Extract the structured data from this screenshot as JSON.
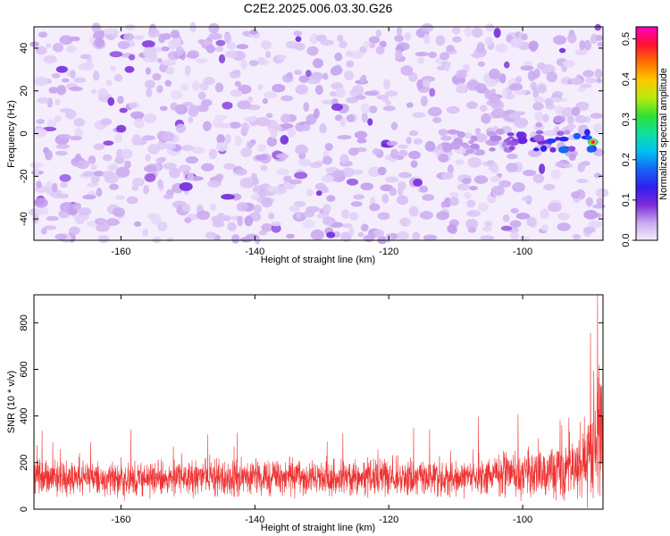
{
  "chart_data": [
    {
      "type": "heatmap",
      "title": "C2E2.2025.006.03.30.G26",
      "xlabel": "Height of straight line (km)",
      "ylabel": "Frequency (Hz)",
      "xlim": [
        -173,
        -88
      ],
      "ylim": [
        -50,
        50
      ],
      "x_ticks": [
        "-160",
        "-140",
        "-120",
        "-100"
      ],
      "y_ticks": [
        "-40",
        "-20",
        "0",
        "20",
        "40"
      ],
      "colorbar": {
        "label": "Normalized spectral amplitude",
        "range": [
          0.0,
          0.53
        ],
        "ticks": [
          "0.0",
          "0.1",
          "0.2",
          "0.3",
          "0.4",
          "0.5"
        ],
        "colors": [
          "#f4eefc",
          "#c8a6ef",
          "#7b2bd9",
          "#2f1ff0",
          "#1565f5",
          "#00c2f0",
          "#10e0a0",
          "#30e030",
          "#b8ea10",
          "#ffc800",
          "#ff7000",
          "#ff1030",
          "#ff00c0"
        ]
      },
      "typical_amplitude": 0.03,
      "peak": {
        "x": -89.5,
        "y": -4,
        "value": 0.53
      },
      "grid": false
    },
    {
      "type": "line",
      "xlabel": "Height of straight line (km)",
      "ylabel": "SNR (10 * v/v)",
      "xlim": [
        -173,
        -88
      ],
      "ylim": [
        0,
        920
      ],
      "x_ticks": [
        "-160",
        "-140",
        "-120",
        "-100"
      ],
      "y_ticks": [
        "0",
        "200",
        "400",
        "600",
        "800"
      ],
      "line_color": "#ee3333",
      "envelope": {
        "x": [
          -173,
          -160,
          -140,
          -120,
          -105,
          -100,
          -95,
          -92,
          -90,
          -89,
          -88
        ],
        "baseline": [
          130,
          130,
          135,
          135,
          145,
          150,
          160,
          185,
          230,
          330,
          400
        ],
        "noise": [
          55,
          55,
          55,
          58,
          62,
          70,
          85,
          110,
          160,
          230,
          260
        ]
      },
      "grid": false
    }
  ]
}
